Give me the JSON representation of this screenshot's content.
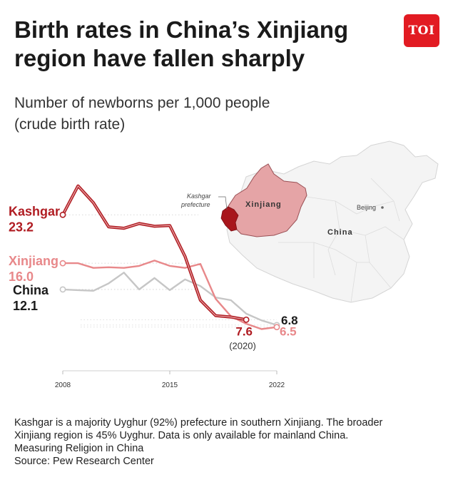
{
  "header": {
    "title_line1": "Birth rates in China’s Xinjiang",
    "title_line2": "region have fallen sharply",
    "subtitle_line1": "Number of newborns per 1,000 people",
    "subtitle_line2": "(crude birth rate)",
    "logo_text": "TOI",
    "logo_color": "#e21b22"
  },
  "map": {
    "kashgar_label_line1": "Kashgar",
    "kashgar_label_line2": "prefecture",
    "xinjiang_label": "Xinjiang",
    "china_label": "China",
    "beijing_label": "Beijing"
  },
  "chart_data": {
    "type": "line",
    "x": [
      2008,
      2009,
      2010,
      2011,
      2012,
      2013,
      2014,
      2015,
      2016,
      2017,
      2018,
      2019,
      2020,
      2021,
      2022
    ],
    "xticks": [
      "2008",
      "2015",
      "2022"
    ],
    "xlim": [
      2008,
      2022
    ],
    "ylim": [
      0,
      35
    ],
    "grid": false,
    "series": [
      {
        "name": "Kashgar",
        "color": "#b01c22",
        "start_label": "23.2",
        "end_label": "7.6",
        "end_note": "(2020)",
        "values": [
          23.2,
          27.5,
          25.0,
          21.4,
          21.2,
          21.9,
          21.5,
          21.6,
          17.0,
          10.5,
          8.2,
          8.0,
          7.6,
          null,
          null
        ]
      },
      {
        "name": "Xinjiang",
        "color": "#e8888a",
        "start_label": "16.0",
        "end_label": "6.5",
        "values": [
          16.0,
          16.0,
          15.3,
          15.4,
          15.3,
          15.6,
          16.4,
          15.6,
          15.3,
          15.9,
          10.7,
          8.1,
          7.0,
          6.2,
          6.5
        ]
      },
      {
        "name": "China",
        "color": "#c6c6c6",
        "start_label": "12.1",
        "end_label": "6.8",
        "values": [
          12.1,
          12.0,
          11.9,
          13.0,
          14.6,
          12.1,
          13.8,
          12.0,
          13.6,
          12.6,
          10.9,
          10.5,
          8.5,
          7.5,
          6.8
        ]
      }
    ]
  },
  "footer": {
    "note_line1": "Kashgar is a majority Uyghur (92%) prefecture in southern Xinjiang. The broader",
    "note_line2": "Xinjiang region is 45% Uyghur. Data is only available for mainland China.",
    "note_line3": "Measuring Religion in China",
    "source": "Source: Pew Research Center"
  }
}
